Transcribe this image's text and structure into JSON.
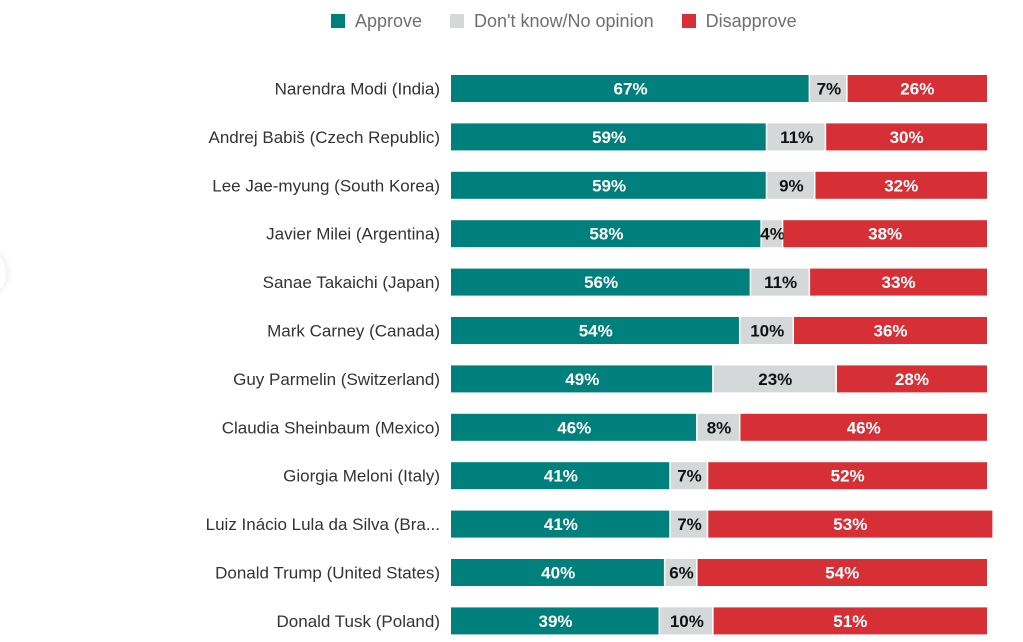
{
  "chart_data": {
    "type": "bar",
    "orientation": "horizontal",
    "stacked": true,
    "title": "",
    "xlabel": "",
    "ylabel": "",
    "xlim": [
      0,
      100
    ],
    "grid": false,
    "legend_position": "top",
    "categories": [
      "Narendra Modi (India)",
      "Andrej Babiš (Czech Republic)",
      "Lee Jae-myung (South Korea)",
      "Javier Milei (Argentina)",
      "Sanae Takaichi (Japan)",
      "Mark Carney (Canada)",
      "Guy Parmelin (Switzerland)",
      "Claudia Sheinbaum (Mexico)",
      "Giorgia Meloni (Italy)",
      "Luiz Inácio Lula da Silva (Bra...",
      "Donald Trump (United States)",
      "Donald Tusk (Poland)"
    ],
    "series": [
      {
        "name": "Approve",
        "color": "#00807c",
        "label_color": "#ffffff",
        "values": [
          67,
          59,
          59,
          58,
          56,
          54,
          49,
          46,
          41,
          41,
          40,
          39
        ]
      },
      {
        "name": "Don't know/No opinion",
        "color": "#d5d8d9",
        "label_color": "#111111",
        "values": [
          7,
          11,
          9,
          4,
          11,
          10,
          23,
          8,
          7,
          7,
          6,
          10
        ]
      },
      {
        "name": "Disapprove",
        "color": "#d62f36",
        "label_color": "#ffffff",
        "values": [
          26,
          30,
          32,
          38,
          33,
          36,
          28,
          46,
          52,
          53,
          54,
          51
        ]
      }
    ],
    "value_suffix": "%"
  }
}
